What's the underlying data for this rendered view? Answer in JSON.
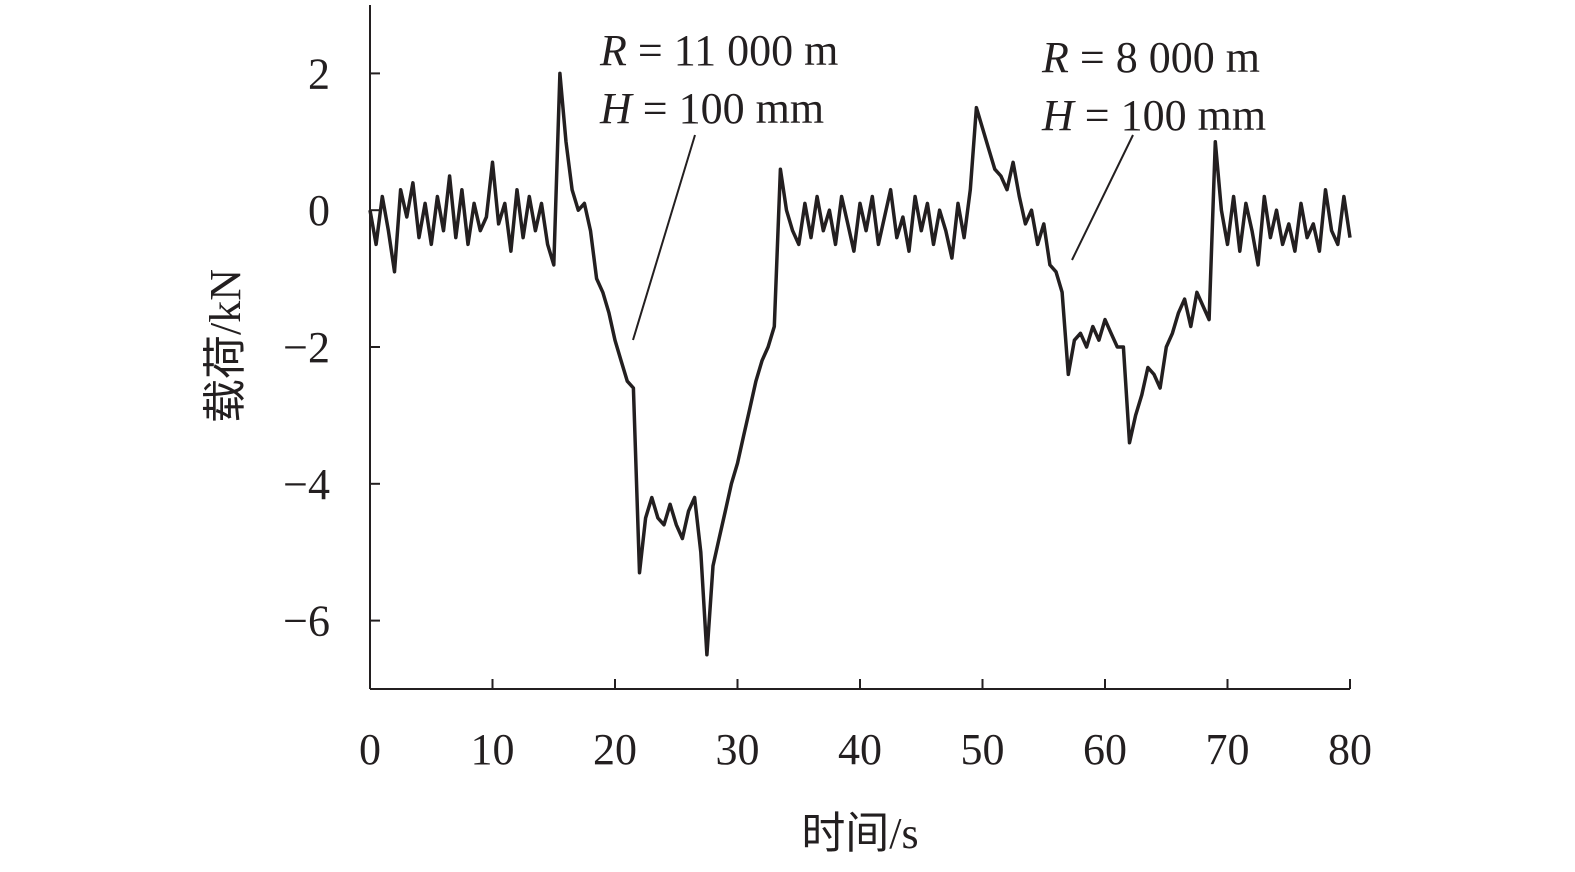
{
  "chart_data": {
    "type": "line",
    "x_label": "时间/s",
    "y_label": "载荷/kN",
    "x": [
      0,
      0.5,
      1,
      1.5,
      2,
      2.5,
      3,
      3.5,
      4,
      4.5,
      5,
      5.5,
      6,
      6.5,
      7,
      7.5,
      8,
      8.5,
      9,
      9.5,
      10,
      10.5,
      11,
      11.5,
      12,
      12.5,
      13,
      13.5,
      14,
      14.5,
      15,
      15.5,
      16,
      16.5,
      17,
      17.5,
      18,
      18.5,
      19,
      19.5,
      20,
      20.5,
      21,
      21.5,
      22,
      22.5,
      23,
      23.5,
      24,
      24.5,
      25,
      25.5,
      26,
      26.5,
      27,
      27.5,
      28,
      28.5,
      29,
      29.5,
      30,
      30.5,
      31,
      31.5,
      32,
      32.5,
      33,
      33.5,
      34,
      34.5,
      35,
      35.5,
      36,
      36.5,
      37,
      37.5,
      38,
      38.5,
      39,
      39.5,
      40,
      40.5,
      41,
      41.5,
      42,
      42.5,
      43,
      43.5,
      44,
      44.5,
      45,
      45.5,
      46,
      46.5,
      47,
      47.5,
      48,
      48.5,
      49,
      49.5,
      50,
      50.5,
      51,
      51.5,
      52,
      52.5,
      53,
      53.5,
      54,
      54.5,
      55,
      55.5,
      56,
      56.5,
      57,
      57.5,
      58,
      58.5,
      59,
      59.5,
      60,
      60.5,
      61,
      61.5,
      62,
      62.5,
      63,
      63.5,
      64,
      64.5,
      65,
      65.5,
      66,
      66.5,
      67,
      67.5,
      68,
      68.5,
      69,
      69.5,
      70,
      70.5,
      71,
      71.5,
      72,
      72.5,
      73,
      73.5,
      74,
      74.5,
      75,
      75.5,
      76,
      76.5,
      77,
      77.5,
      78,
      78.5,
      79,
      79.5,
      80
    ],
    "series": [
      {
        "color": "#231f20",
        "values": [
          0.0,
          -0.5,
          0.2,
          -0.3,
          -0.9,
          0.3,
          -0.1,
          0.4,
          -0.4,
          0.1,
          -0.5,
          0.2,
          -0.3,
          0.5,
          -0.4,
          0.3,
          -0.5,
          0.1,
          -0.3,
          -0.1,
          0.7,
          -0.2,
          0.1,
          -0.6,
          0.3,
          -0.4,
          0.2,
          -0.3,
          0.1,
          -0.5,
          -0.8,
          2.0,
          1.0,
          0.3,
          0.0,
          0.1,
          -0.3,
          -1.0,
          -1.2,
          -1.5,
          -1.9,
          -2.2,
          -2.5,
          -2.6,
          -5.3,
          -4.5,
          -4.2,
          -4.5,
          -4.6,
          -4.3,
          -4.6,
          -4.8,
          -4.4,
          -4.2,
          -5.0,
          -6.5,
          -5.2,
          -4.8,
          -4.4,
          -4.0,
          -3.7,
          -3.3,
          -2.9,
          -2.5,
          -2.2,
          -2.0,
          -1.7,
          0.6,
          0.0,
          -0.3,
          -0.5,
          0.1,
          -0.4,
          0.2,
          -0.3,
          0.0,
          -0.5,
          0.2,
          -0.2,
          -0.6,
          0.1,
          -0.3,
          0.2,
          -0.5,
          -0.1,
          0.3,
          -0.4,
          -0.1,
          -0.6,
          0.2,
          -0.3,
          0.1,
          -0.5,
          0.0,
          -0.3,
          -0.7,
          0.1,
          -0.4,
          0.3,
          1.5,
          1.2,
          0.9,
          0.6,
          0.5,
          0.3,
          0.7,
          0.2,
          -0.2,
          0.0,
          -0.5,
          -0.2,
          -0.8,
          -0.9,
          -1.2,
          -2.4,
          -1.9,
          -1.8,
          -2.0,
          -1.7,
          -1.9,
          -1.6,
          -1.8,
          -2.0,
          -2.0,
          -3.4,
          -3.0,
          -2.7,
          -2.3,
          -2.4,
          -2.6,
          -2.0,
          -1.8,
          -1.5,
          -1.3,
          -1.7,
          -1.2,
          -1.4,
          -1.6,
          1.0,
          0.0,
          -0.5,
          0.2,
          -0.6,
          0.1,
          -0.3,
          -0.8,
          0.2,
          -0.4,
          0.0,
          -0.5,
          -0.2,
          -0.6,
          0.1,
          -0.4,
          -0.2,
          -0.6,
          0.3,
          -0.3,
          -0.5,
          0.2,
          -0.4
        ]
      }
    ],
    "xlim": [
      0,
      80
    ],
    "xticks": [
      0,
      10,
      20,
      30,
      40,
      50,
      60,
      70,
      80
    ],
    "ylim": [
      -7,
      3
    ],
    "yticks": [
      {
        "value": -6,
        "label": "−6"
      },
      {
        "value": -4,
        "label": "−4"
      },
      {
        "value": -2,
        "label": "−2"
      },
      0,
      2
    ],
    "annotations": [
      {
        "lines": [
          {
            "symbol": "R",
            "rest": " = 11 000 m"
          },
          {
            "symbol": "H",
            "rest": " = 100 mm"
          }
        ]
      },
      {
        "lines": [
          {
            "symbol": "R",
            "rest": " = 8 000 m"
          },
          {
            "symbol": "H",
            "rest": " = 100 mm"
          }
        ]
      }
    ]
  }
}
